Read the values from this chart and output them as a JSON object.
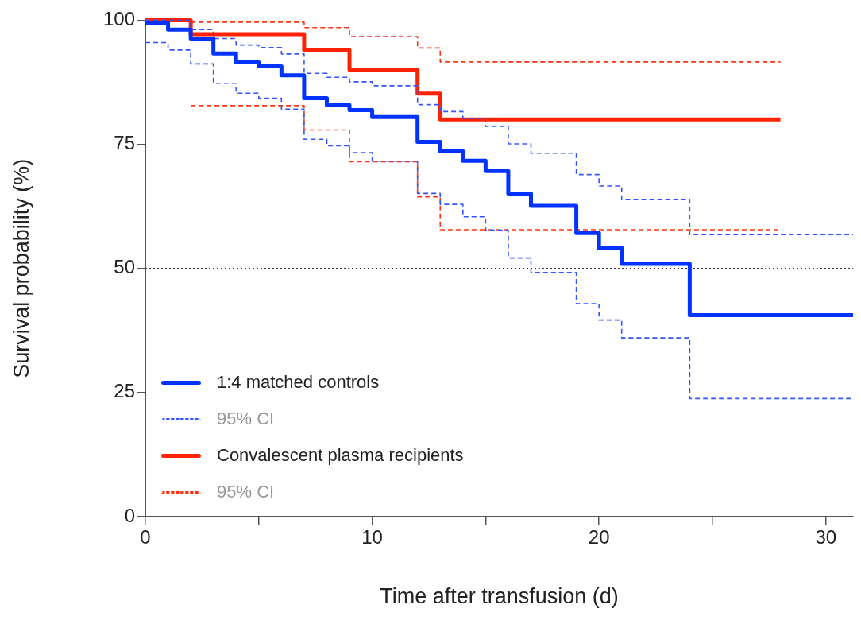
{
  "chart_data": {
    "type": "step",
    "xlabel": "Time after transfusion (d)",
    "ylabel": "Survival probability (%)",
    "xlim": [
      0,
      31.2
    ],
    "xticks": [
      0,
      {
        "value": 5,
        "label": null
      },
      10,
      {
        "value": 15,
        "label": null
      },
      20,
      {
        "value": 25,
        "label": null
      },
      30
    ],
    "ylim": [
      0,
      100
    ],
    "yticks": [
      0,
      25,
      50,
      75,
      100
    ],
    "grid": false,
    "legend": "bottom left",
    "ref_lines": [
      {
        "axis": "y",
        "value": 50,
        "label": null,
        "color": "#333333",
        "line_style": "dotted"
      }
    ],
    "series": [
      {
        "name": "1:4 matched controls",
        "color": "#0033ff",
        "line_style": "solid",
        "x": [
          0,
          1,
          2,
          3,
          4,
          5,
          6,
          7,
          8,
          9,
          10,
          12,
          13,
          14,
          15,
          16,
          17,
          19,
          20,
          21,
          24,
          31.2
        ],
        "values": [
          99.4,
          98.1,
          96.3,
          93.3,
          91.5,
          90.7,
          88.9,
          84.3,
          82.9,
          81.9,
          80.5,
          75.5,
          73.6,
          71.7,
          69.6,
          65.1,
          62.6,
          57.1,
          54.1,
          50.9,
          40.6,
          40.6
        ]
      },
      {
        "name": "95% CI",
        "color": "#3355ff",
        "line_style": "dashed",
        "x": [
          0,
          2,
          3,
          4,
          5,
          6,
          7,
          8,
          9,
          10,
          12,
          13,
          14,
          15,
          16,
          17,
          19,
          20,
          21,
          24,
          31.2
        ],
        "values": [
          100,
          98.1,
          96.3,
          95.0,
          94.5,
          93.2,
          89.3,
          88.5,
          87.6,
          86.8,
          83.0,
          81.6,
          80.2,
          78.6,
          75.1,
          73.2,
          68.9,
          66.6,
          63.9,
          56.8,
          56.8
        ]
      },
      {
        "color": "#3355ff",
        "line_style": "dashed",
        "x": [
          0,
          1,
          2,
          3,
          4,
          5,
          6,
          7,
          8,
          9,
          10,
          12,
          13,
          14,
          15,
          16,
          17,
          19,
          20,
          21,
          24,
          31.2
        ],
        "values": [
          95.5,
          94.0,
          91.2,
          87.3,
          85.3,
          84.3,
          82.1,
          76.0,
          74.7,
          73.3,
          71.6,
          65.1,
          62.9,
          60.4,
          57.7,
          52.1,
          49.2,
          42.9,
          39.6,
          36.0,
          23.8,
          23.8
        ]
      },
      {
        "name": "Convalescent plasma recipients",
        "color": "#ff2200",
        "line_style": "solid",
        "x": [
          0,
          2,
          7,
          9,
          12,
          13,
          28
        ],
        "values": [
          100,
          97.2,
          94.0,
          90.0,
          85.2,
          80.0,
          80.0
        ]
      },
      {
        "name": "95% CI",
        "color": "#ff3311",
        "line_style": "dashed",
        "x": [
          2,
          7,
          9,
          12,
          13,
          28
        ],
        "values": [
          99.6,
          98.5,
          96.7,
          94.4,
          91.6,
          91.6
        ]
      },
      {
        "color": "#ff3311",
        "line_style": "dashed",
        "x": [
          2,
          7,
          9,
          12,
          13,
          28
        ],
        "values": [
          82.8,
          77.9,
          71.5,
          64.4,
          57.8,
          57.8
        ]
      }
    ]
  }
}
